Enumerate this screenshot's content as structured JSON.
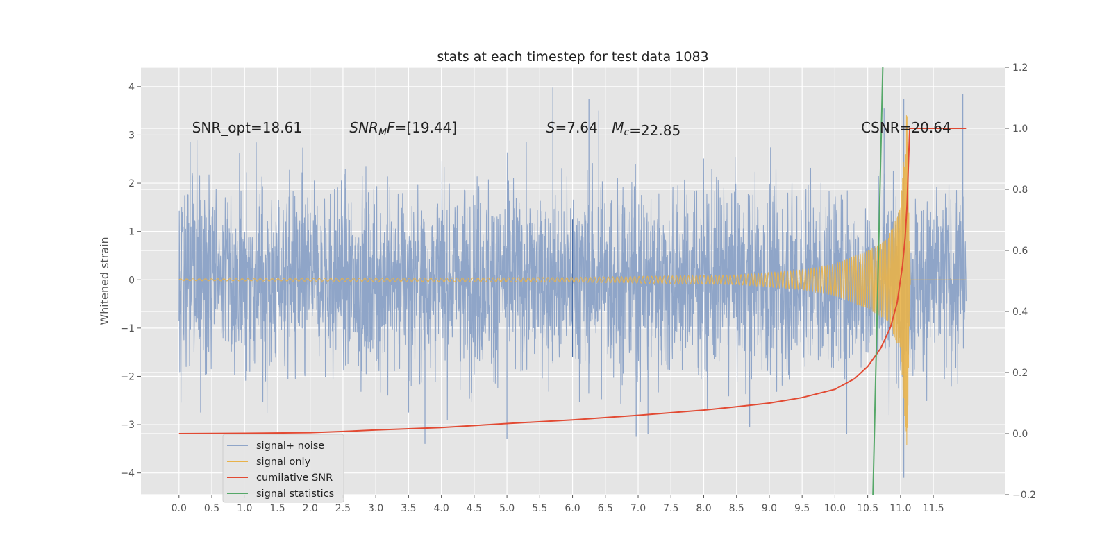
{
  "chart_data": {
    "type": "line",
    "title": "stats at each timestep for test data 1083",
    "xlabel": "",
    "ylabel": "Whitened strain",
    "y2label": "",
    "xlim": [
      -0.58,
      12.6
    ],
    "ylim": [
      -4.45,
      4.4
    ],
    "y2lim": [
      -0.2,
      1.2
    ],
    "grid": true,
    "legend_position": "lower-left",
    "x_ticks": [
      "0.0",
      "0.5",
      "1.0",
      "1.5",
      "2.0",
      "2.5",
      "3.0",
      "3.5",
      "4.0",
      "4.5",
      "5.0",
      "5.5",
      "6.0",
      "6.5",
      "7.0",
      "7.5",
      "8.0",
      "8.5",
      "9.0",
      "9.5",
      "10.0",
      "10.5",
      "11.0",
      "11.5"
    ],
    "y_ticks": [
      "−4",
      "−3",
      "−2",
      "−1",
      "0",
      "1",
      "2",
      "3",
      "4"
    ],
    "y2_ticks": [
      "−0.2",
      "0.0",
      "0.2",
      "0.4",
      "0.6",
      "0.8",
      "1.0",
      "1.2"
    ],
    "series": [
      {
        "name": "signal+ noise",
        "color": "#8fa5c8",
        "axis": "left",
        "x_range": [
          0.0,
          12.0
        ],
        "envelope_low": -2.1,
        "envelope_high": 2.2,
        "extremes": [
          {
            "x": 0.17,
            "y": 2.85
          },
          {
            "x": 0.33,
            "y": -2.75
          },
          {
            "x": 3.5,
            "y": -2.75
          },
          {
            "x": 3.75,
            "y": -3.4
          },
          {
            "x": 5.0,
            "y": -3.3
          },
          {
            "x": 5.7,
            "y": 3.98
          },
          {
            "x": 6.25,
            "y": 3.75
          },
          {
            "x": 6.4,
            "y": 3.5
          },
          {
            "x": 6.97,
            "y": -3.25
          },
          {
            "x": 7.15,
            "y": -3.2
          },
          {
            "x": 8.7,
            "y": -3.05
          },
          {
            "x": 10.18,
            "y": -3.2
          },
          {
            "x": 10.75,
            "y": 3.55
          },
          {
            "x": 11.05,
            "y": 3.75
          },
          {
            "x": 11.05,
            "y": -4.1
          },
          {
            "x": 11.95,
            "y": 3.85
          }
        ]
      },
      {
        "name": "signal only",
        "color": "#e8b24a",
        "axis": "left",
        "envelope": [
          {
            "x": 0.0,
            "amp": 0.02
          },
          {
            "x": 6.0,
            "amp": 0.05
          },
          {
            "x": 8.5,
            "amp": 0.1
          },
          {
            "x": 9.5,
            "amp": 0.2
          },
          {
            "x": 10.0,
            "amp": 0.33
          },
          {
            "x": 10.5,
            "amp": 0.6
          },
          {
            "x": 10.8,
            "amp": 0.85
          },
          {
            "x": 11.0,
            "amp": 1.5
          },
          {
            "x": 11.1,
            "amp": 3.6
          },
          {
            "x": 11.15,
            "amp": 0.0
          },
          {
            "x": 12.0,
            "amp": 0.0
          }
        ]
      },
      {
        "name": "cumilative SNR",
        "color": "#e24a33",
        "axis": "right",
        "x": [
          0.0,
          1.0,
          2.0,
          2.5,
          3.0,
          4.0,
          5.0,
          6.0,
          7.0,
          8.0,
          8.5,
          9.0,
          9.5,
          10.0,
          10.3,
          10.5,
          10.7,
          10.85,
          10.95,
          11.03,
          11.07,
          11.1,
          11.12,
          11.14,
          11.5,
          12.0
        ],
        "y": [
          0.0,
          0.001,
          0.003,
          0.007,
          0.012,
          0.02,
          0.033,
          0.045,
          0.06,
          0.077,
          0.088,
          0.1,
          0.118,
          0.145,
          0.18,
          0.22,
          0.28,
          0.35,
          0.43,
          0.55,
          0.64,
          0.75,
          0.88,
          1.0,
          1.0,
          1.0
        ]
      },
      {
        "name": "signal statistics",
        "color": "#55a868",
        "axis": "left",
        "x": [
          10.58,
          10.73
        ],
        "y": [
          -4.45,
          4.4
        ]
      }
    ],
    "markers": [
      {
        "name": "S marker",
        "color": "#4a6ea8",
        "x": 6.0,
        "y_low": -1.6,
        "y_high": 1.25
      }
    ],
    "annotations": [
      {
        "label": "SNR_opt=18.61",
        "x": 0.2,
        "y": 3.15
      },
      {
        "label": "[19.44]",
        "x": 2.6,
        "y": 3.15,
        "prefix_parts": [
          "SNR",
          "M",
          "F",
          "="
        ]
      },
      {
        "label": "=7.64",
        "x": 5.6,
        "y": 3.15,
        "prefix_parts": [
          "S"
        ]
      },
      {
        "label": "=22.85",
        "x": 6.6,
        "y": 3.15,
        "prefix_parts": [
          "M",
          "c"
        ]
      },
      {
        "label": "CSNR=20.64",
        "x": 10.4,
        "y": 3.15
      }
    ]
  },
  "legend": {
    "items": [
      {
        "label": "signal+ noise",
        "color": "#8fa5c8"
      },
      {
        "label": "signal only",
        "color": "#e8b24a"
      },
      {
        "label": "cumilative SNR",
        "color": "#e24a33"
      },
      {
        "label": "signal statistics",
        "color": "#55a868"
      }
    ]
  }
}
